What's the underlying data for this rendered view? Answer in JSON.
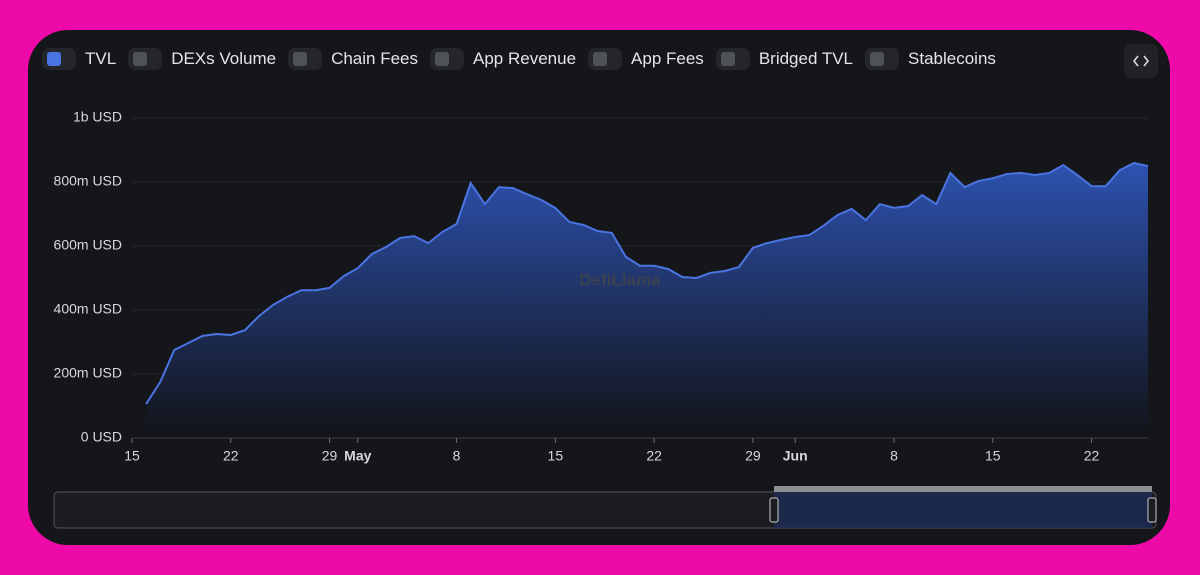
{
  "chart_data": {
    "type": "area",
    "watermark": "DefiLlama",
    "x": [
      "04-16",
      "04-17",
      "04-18",
      "04-19",
      "04-20",
      "04-21",
      "04-22",
      "04-23",
      "04-24",
      "04-25",
      "04-26",
      "04-27",
      "04-28",
      "04-29",
      "04-30",
      "05-01",
      "05-02",
      "05-03",
      "05-04",
      "05-05",
      "05-06",
      "05-07",
      "05-08",
      "05-09",
      "05-10",
      "05-11",
      "05-12",
      "05-13",
      "05-14",
      "05-15",
      "05-16",
      "05-17",
      "05-18",
      "05-19",
      "05-20",
      "05-21",
      "05-22",
      "05-23",
      "05-24",
      "05-25",
      "05-26",
      "05-27",
      "05-28",
      "05-29",
      "05-30",
      "05-31",
      "06-01",
      "06-02",
      "06-03",
      "06-04",
      "06-05",
      "06-06",
      "06-07",
      "06-08",
      "06-09",
      "06-10",
      "06-11",
      "06-12",
      "06-13",
      "06-14",
      "06-15",
      "06-16",
      "06-17",
      "06-18",
      "06-19",
      "06-20",
      "06-21",
      "06-22",
      "06-23",
      "06-24",
      "06-25",
      "06-26"
    ],
    "series": [
      {
        "name": "TVL",
        "color": "#4a74e2",
        "values": [
          106000000,
          175000000,
          275000000,
          297000000,
          319000000,
          325000000,
          322000000,
          337000000,
          381000000,
          416000000,
          441000000,
          462000000,
          462000000,
          469000000,
          506000000,
          531000000,
          575000000,
          597000000,
          625000000,
          631000000,
          609000000,
          644000000,
          669000000,
          797000000,
          731000000,
          784000000,
          781000000,
          762000000,
          744000000,
          719000000,
          675000000,
          666000000,
          647000000,
          641000000,
          566000000,
          538000000,
          538000000,
          528000000,
          503000000,
          500000000,
          516000000,
          522000000,
          534000000,
          594000000,
          609000000,
          619000000,
          628000000,
          634000000,
          663000000,
          697000000,
          716000000,
          681000000,
          731000000,
          719000000,
          725000000,
          759000000,
          731000000,
          828000000,
          784000000,
          803000000,
          812000000,
          825000000,
          828000000,
          822000000,
          828000000,
          853000000,
          822000000,
          787000000,
          787000000,
          837000000,
          859000000,
          850000000
        ]
      }
    ],
    "xlim": [
      "04-15",
      "06-26"
    ],
    "xticks": [
      {
        "value": "04-15",
        "label": "15"
      },
      {
        "value": "04-22",
        "label": "22"
      },
      {
        "value": "04-29",
        "label": "29"
      },
      {
        "value": "05-01",
        "label": "May"
      },
      {
        "value": "05-08",
        "label": "8"
      },
      {
        "value": "05-15",
        "label": "15"
      },
      {
        "value": "05-22",
        "label": "22"
      },
      {
        "value": "05-29",
        "label": "29"
      },
      {
        "value": "06-01",
        "label": "Jun"
      },
      {
        "value": "06-08",
        "label": "8"
      },
      {
        "value": "06-15",
        "label": "15"
      },
      {
        "value": "06-22",
        "label": "22"
      }
    ],
    "ylim": [
      0,
      1000000000
    ],
    "yticks": [
      {
        "value": 0,
        "label": "0 USD"
      },
      {
        "value": 200000000,
        "label": "200m USD"
      },
      {
        "value": 400000000,
        "label": "400m USD"
      },
      {
        "value": 600000000,
        "label": "600m USD"
      },
      {
        "value": 800000000,
        "label": "800m USD"
      },
      {
        "value": 1000000000,
        "label": "1b USD"
      }
    ],
    "grid": true
  },
  "toggles": [
    "DEXs Volume",
    "Chain Fees",
    "App Revenue",
    "App Fees",
    "Bridged TVL",
    "Stablecoins"
  ]
}
